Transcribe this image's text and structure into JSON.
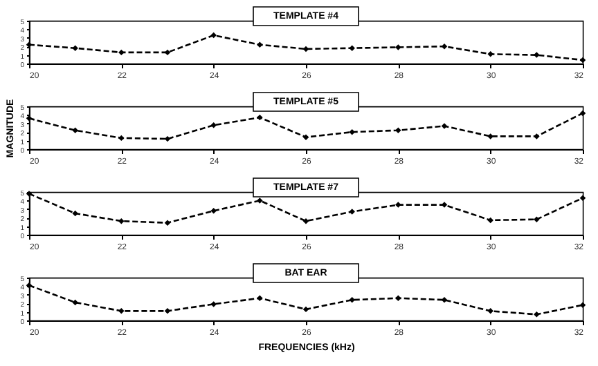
{
  "chart_data": [
    {
      "type": "line",
      "title": "TEMPLATE #4",
      "x": [
        20,
        21,
        22,
        23,
        24,
        25,
        26,
        27,
        28,
        29,
        30,
        31,
        32
      ],
      "series": [
        {
          "color": "#000000",
          "values": [
            2.2,
            1.8,
            1.3,
            1.3,
            3.3,
            2.2,
            1.7,
            1.8,
            1.9,
            2.0,
            1.1,
            1.0,
            0.4
          ]
        }
      ],
      "xlim": [
        20,
        32
      ],
      "xticks": [
        20,
        22,
        24,
        26,
        28,
        30,
        32
      ],
      "ylim": [
        0,
        5
      ],
      "yticks": [
        0,
        1,
        2,
        3,
        4,
        5
      ],
      "marker": "diamond",
      "line_style": "dashed",
      "grid": false
    },
    {
      "type": "line",
      "title": "TEMPLATE #5",
      "ylabel": "MAGNITUDE",
      "x": [
        20,
        21,
        22,
        23,
        24,
        25,
        26,
        27,
        28,
        29,
        30,
        31,
        32
      ],
      "series": [
        {
          "color": "#000000",
          "values": [
            3.6,
            2.2,
            1.3,
            1.2,
            2.8,
            3.7,
            1.4,
            2.0,
            2.2,
            2.7,
            1.5,
            1.5,
            4.2
          ]
        }
      ],
      "xlim": [
        20,
        32
      ],
      "xticks": [
        20,
        22,
        24,
        26,
        28,
        30,
        32
      ],
      "ylim": [
        0,
        5
      ],
      "yticks": [
        0,
        1,
        2,
        3,
        4,
        5
      ],
      "marker": "diamond",
      "line_style": "dashed",
      "grid": false
    },
    {
      "type": "line",
      "title": "TEMPLATE #7",
      "x": [
        20,
        21,
        22,
        23,
        24,
        25,
        26,
        27,
        28,
        29,
        30,
        31,
        32
      ],
      "series": [
        {
          "color": "#000000",
          "values": [
            4.8,
            2.5,
            1.6,
            1.4,
            2.8,
            4.0,
            1.6,
            2.7,
            3.5,
            3.5,
            1.7,
            1.8,
            4.3
          ]
        }
      ],
      "xlim": [
        20,
        32
      ],
      "xticks": [
        20,
        22,
        24,
        26,
        28,
        30,
        32
      ],
      "ylim": [
        0,
        5
      ],
      "yticks": [
        0,
        1,
        2,
        3,
        4,
        5
      ],
      "marker": "diamond",
      "line_style": "dashed",
      "grid": false
    },
    {
      "type": "line",
      "title": "BAT EAR",
      "xlabel": "FREQUENCIES (kHz)",
      "x": [
        20,
        21,
        22,
        23,
        24,
        25,
        26,
        27,
        28,
        29,
        30,
        31,
        32
      ],
      "series": [
        {
          "color": "#000000",
          "values": [
            4.1,
            2.1,
            1.1,
            1.1,
            1.9,
            2.6,
            1.3,
            2.4,
            2.6,
            2.4,
            1.1,
            0.7,
            1.8
          ]
        }
      ],
      "xlim": [
        20,
        32
      ],
      "xticks": [
        20,
        22,
        24,
        26,
        28,
        30,
        32
      ],
      "ylim": [
        0,
        5
      ],
      "yticks": [
        0,
        1,
        2,
        3,
        4,
        5
      ],
      "marker": "diamond",
      "line_style": "dashed",
      "grid": false
    }
  ]
}
